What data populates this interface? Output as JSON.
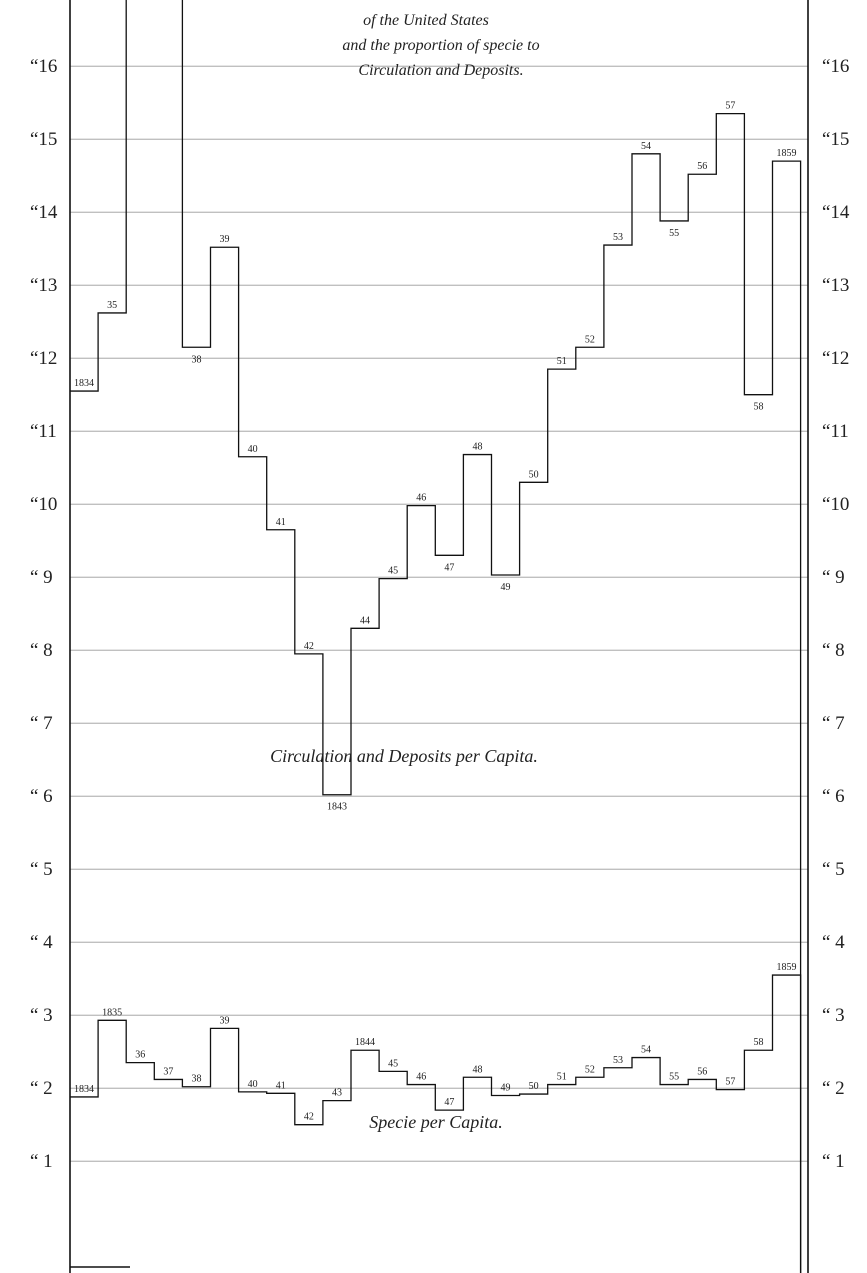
{
  "chart_data": {
    "type": "line",
    "step": true,
    "title_lines": [
      "of the United States",
      "and the proportion of specie to",
      "Circulation and Deposits."
    ],
    "ylim": [
      0.5,
      16.7
    ],
    "y_ticks": [
      {
        "value": 16,
        "left": "“16",
        "right": "“16"
      },
      {
        "value": 15,
        "left": "“15",
        "right": "“15"
      },
      {
        "value": 14,
        "left": "“14",
        "right": "“14"
      },
      {
        "value": 13,
        "left": "“13",
        "right": "“13"
      },
      {
        "value": 12,
        "left": "“12",
        "right": "“12"
      },
      {
        "value": 11,
        "left": "“11",
        "right": "“11"
      },
      {
        "value": 10,
        "left": "“10",
        "right": "“10"
      },
      {
        "value": 9,
        "left": "“ 9",
        "right": "“ 9"
      },
      {
        "value": 8,
        "left": "“ 8",
        "right": "“ 8"
      },
      {
        "value": 7,
        "left": "“ 7",
        "right": "“ 7"
      },
      {
        "value": 6,
        "left": "“ 6",
        "right": "“ 6"
      },
      {
        "value": 5,
        "left": "“ 5",
        "right": "“ 5"
      },
      {
        "value": 4,
        "left": "“ 4",
        "right": "“ 4"
      },
      {
        "value": 3,
        "left": "“ 3",
        "right": "“ 3"
      },
      {
        "value": 2,
        "left": "“ 2",
        "right": "“ 2"
      },
      {
        "value": 1,
        "left": "“ 1",
        "right": "“ 1"
      }
    ],
    "x": [
      1834,
      1835,
      1836,
      1837,
      1838,
      1839,
      1840,
      1841,
      1842,
      1843,
      1844,
      1845,
      1846,
      1847,
      1848,
      1849,
      1850,
      1851,
      1852,
      1853,
      1854,
      1855,
      1856,
      1857,
      1858,
      1859
    ],
    "series": [
      {
        "name": "Circulation and Deposits per Capita.",
        "values": [
          11.55,
          12.62,
          17.4,
          17.4,
          12.15,
          13.52,
          10.65,
          9.65,
          7.95,
          6.02,
          8.3,
          8.98,
          9.98,
          9.3,
          10.68,
          9.03,
          10.3,
          11.85,
          12.15,
          13.55,
          14.8,
          13.88,
          14.52,
          15.35,
          11.5,
          14.7
        ],
        "labels": [
          "1834",
          "35",
          "",
          "",
          "38",
          "39",
          "40",
          "41",
          "42",
          "1843",
          "44",
          "45",
          "46",
          "47",
          "48",
          "49",
          "50",
          "51",
          "52",
          "53",
          "54",
          "55",
          "56",
          "57",
          "58",
          "1859"
        ]
      },
      {
        "name": "Specie per Capita.",
        "values": [
          1.88,
          2.93,
          2.35,
          2.12,
          2.02,
          2.82,
          1.95,
          1.93,
          1.5,
          1.83,
          2.52,
          2.23,
          2.05,
          1.7,
          2.15,
          1.9,
          1.92,
          2.05,
          2.15,
          2.28,
          2.42,
          2.05,
          2.12,
          1.98,
          2.52,
          3.55
        ],
        "labels": [
          "1834",
          "1835",
          "36",
          "37",
          "38",
          "39",
          "40",
          "41",
          "42",
          "43",
          "1844",
          "45",
          "46",
          "47",
          "48",
          "49",
          "50",
          "51",
          "52",
          "53",
          "54",
          "55",
          "56",
          "57",
          "58",
          "1859"
        ]
      }
    ]
  }
}
